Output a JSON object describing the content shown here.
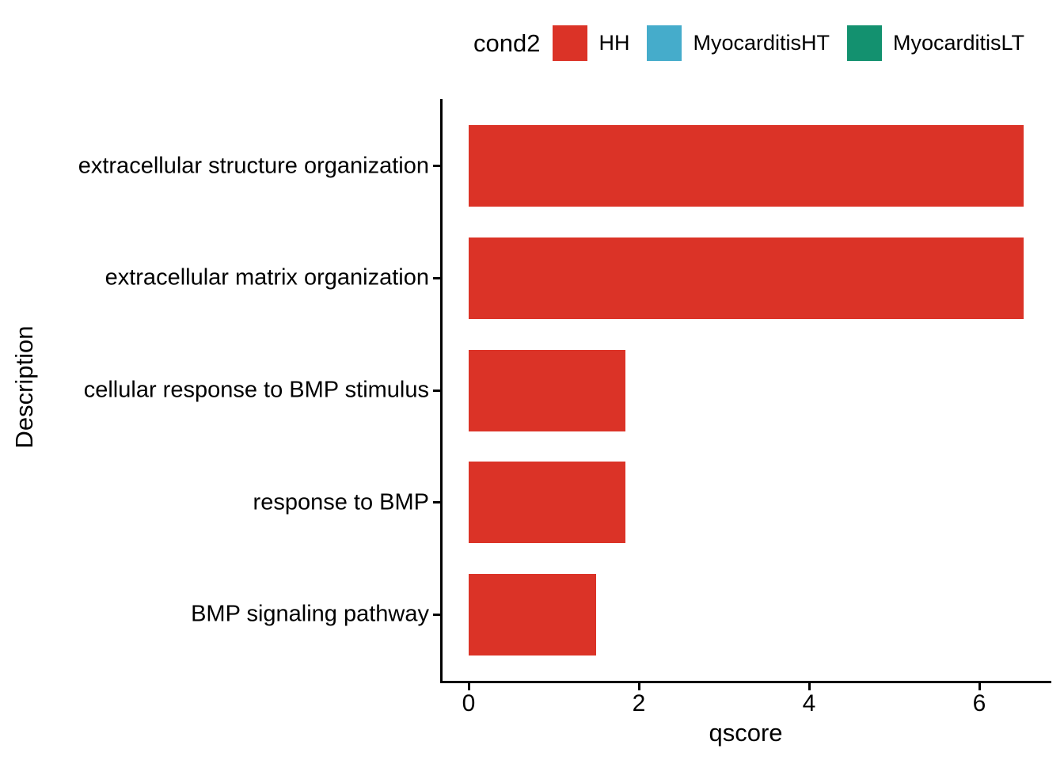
{
  "chart_data": {
    "type": "bar",
    "orientation": "horizontal",
    "title": "",
    "xlabel": "qscore",
    "ylabel": "Description",
    "categories": [
      "extracellular structure organization",
      "extracellular matrix organization",
      "cellular response to BMP stimulus",
      "response to BMP",
      "BMP signaling pathway"
    ],
    "series": [
      {
        "name": "HH",
        "color": "#DB3327",
        "values": [
          6.52,
          6.52,
          1.84,
          1.84,
          1.5
        ]
      }
    ],
    "xticks": [
      "0",
      "2",
      "4",
      "6"
    ],
    "xtick_values": [
      0,
      2,
      4,
      6
    ],
    "xlim": [
      -0.33,
      6.85
    ],
    "grid": false,
    "background": "#ffffff",
    "axis_color": "#000000",
    "text_color": "#000000",
    "legend": {
      "title": "cond2",
      "position": "top",
      "entries": [
        {
          "label": "HH",
          "color": "#DB3327"
        },
        {
          "label": "MyocarditisHT",
          "color": "#45ACCB"
        },
        {
          "label": "MyocarditisLT",
          "color": "#13916F"
        }
      ]
    }
  }
}
